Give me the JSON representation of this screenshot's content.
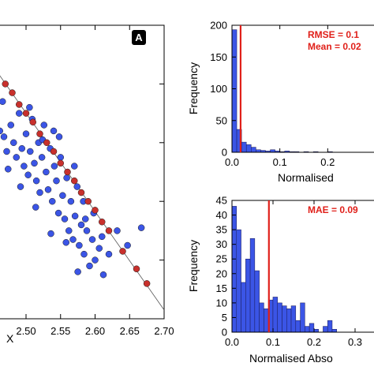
{
  "chart_data": [
    {
      "type": "scatter",
      "panel_label": "A",
      "xlabel": "X",
      "x_ticks": [
        "2.50",
        "2.55",
        "2.60",
        "2.65",
        "2.70"
      ],
      "xlim": [
        2.46,
        2.7
      ],
      "ylim": [
        0,
        1
      ],
      "line": {
        "x": [
          2.46,
          2.7
        ],
        "y": [
          0.835,
          0.03
        ]
      },
      "series": [
        {
          "color": "#3b55e6",
          "points": [
            [
              2.462,
              0.64
            ],
            [
              2.468,
              0.62
            ],
            [
              2.472,
              0.57
            ],
            [
              2.478,
              0.66
            ],
            [
              2.482,
              0.6
            ],
            [
              2.486,
              0.55
            ],
            [
              2.49,
              0.7
            ],
            [
              2.494,
              0.58
            ],
            [
              2.497,
              0.52
            ],
            [
              2.5,
              0.63
            ],
            [
              2.503,
              0.49
            ],
            [
              2.506,
              0.57
            ],
            [
              2.509,
              0.68
            ],
            [
              2.512,
              0.53
            ],
            [
              2.515,
              0.47
            ],
            [
              2.518,
              0.6
            ],
            [
              2.52,
              0.43
            ],
            [
              2.523,
              0.55
            ],
            [
              2.526,
              0.66
            ],
            [
              2.529,
              0.5
            ],
            [
              2.532,
              0.44
            ],
            [
              2.535,
              0.58
            ],
            [
              2.538,
              0.4
            ],
            [
              2.541,
              0.52
            ],
            [
              2.544,
              0.47
            ],
            [
              2.547,
              0.36
            ],
            [
              2.55,
              0.55
            ],
            [
              2.553,
              0.42
            ],
            [
              2.556,
              0.34
            ],
            [
              2.559,
              0.48
            ],
            [
              2.562,
              0.3
            ],
            [
              2.565,
              0.4
            ],
            [
              2.568,
              0.27
            ],
            [
              2.571,
              0.35
            ],
            [
              2.574,
              0.45
            ],
            [
              2.577,
              0.25
            ],
            [
              2.58,
              0.32
            ],
            [
              2.584,
              0.22
            ],
            [
              2.588,
              0.3
            ],
            [
              2.592,
              0.18
            ],
            [
              2.596,
              0.27
            ],
            [
              2.6,
              0.2
            ],
            [
              2.606,
              0.24
            ],
            [
              2.612,
              0.15
            ],
            [
              2.62,
              0.22
            ],
            [
              2.632,
              0.3
            ],
            [
              2.647,
              0.25
            ],
            [
              2.667,
              0.31
            ],
            [
              2.466,
              0.74
            ],
            [
              2.474,
              0.51
            ],
            [
              2.492,
              0.45
            ],
            [
              2.505,
              0.72
            ],
            [
              2.514,
              0.38
            ],
            [
              2.524,
              0.61
            ],
            [
              2.536,
              0.29
            ],
            [
              2.548,
              0.62
            ],
            [
              2.558,
              0.26
            ],
            [
              2.57,
              0.52
            ],
            [
              2.583,
              0.4
            ],
            [
              2.598,
              0.36
            ],
            [
              2.61,
              0.28
            ],
            [
              2.575,
              0.16
            ],
            [
              2.586,
              0.34
            ],
            [
              2.54,
              0.64
            ]
          ]
        },
        {
          "color": "#c8302c",
          "points": [
            [
              2.47,
              0.8
            ],
            [
              2.48,
              0.77
            ],
            [
              2.49,
              0.73
            ],
            [
              2.5,
              0.7
            ],
            [
              2.51,
              0.67
            ],
            [
              2.52,
              0.63
            ],
            [
              2.53,
              0.6
            ],
            [
              2.54,
              0.57
            ],
            [
              2.55,
              0.53
            ],
            [
              2.56,
              0.5
            ],
            [
              2.57,
              0.47
            ],
            [
              2.58,
              0.43
            ],
            [
              2.59,
              0.4
            ],
            [
              2.6,
              0.37
            ],
            [
              2.61,
              0.33
            ],
            [
              2.62,
              0.3
            ],
            [
              2.64,
              0.23
            ],
            [
              2.66,
              0.17
            ],
            [
              2.675,
              0.12
            ]
          ]
        }
      ]
    },
    {
      "type": "bar",
      "xlabel": "Normalised",
      "ylabel": "Frequency",
      "xlim": [
        0,
        0.3
      ],
      "ylim": [
        0,
        200
      ],
      "x_ticks": [
        "0.0",
        "0.1",
        "0.2"
      ],
      "y_ticks": [
        "0",
        "50",
        "100",
        "150",
        "200"
      ],
      "bin_width": 0.01,
      "values": [
        193,
        36,
        16,
        12,
        8,
        4,
        3,
        2,
        4,
        2,
        1,
        2,
        1,
        1,
        0,
        1,
        0,
        1,
        0,
        0,
        1
      ],
      "vline": 0.018,
      "annotations": [
        "RMSE = 0.1",
        "Mean = 0.02"
      ]
    },
    {
      "type": "bar",
      "xlabel": "Normalised Abso",
      "ylabel": "Frequency",
      "xlim": [
        0,
        0.35
      ],
      "ylim": [
        0,
        45
      ],
      "x_ticks": [
        "0.0",
        "0.1",
        "0.2",
        "0.3"
      ],
      "y_ticks": [
        "0",
        "5",
        "10",
        "15",
        "20",
        "25",
        "30",
        "35",
        "40",
        "45"
      ],
      "bin_width": 0.0111,
      "values": [
        43,
        35,
        17,
        25,
        32,
        21,
        10,
        8,
        11,
        12,
        10,
        9,
        8,
        9,
        4,
        10,
        2,
        3,
        1,
        0,
        2,
        4,
        1
      ],
      "vline": 0.09,
      "annotations": [
        "MAE = 0.09"
      ]
    }
  ]
}
